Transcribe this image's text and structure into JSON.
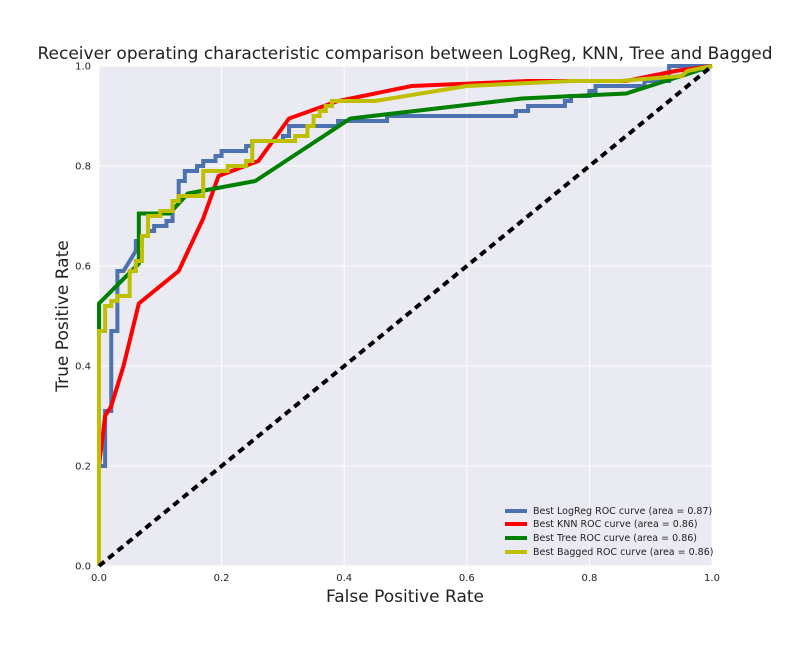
{
  "chart_data": {
    "type": "line",
    "title": "Receiver operating characteristic comparison between LogReg, KNN, Tree and Bagged",
    "xlabel": "False Positive Rate",
    "ylabel": "True Positive Rate",
    "xlim": [
      0.0,
      1.0
    ],
    "ylim": [
      0.0,
      1.0
    ],
    "xticks": [
      "0.0",
      "0.2",
      "0.4",
      "0.6",
      "0.8",
      "1.0"
    ],
    "yticks": [
      "0.0",
      "0.2",
      "0.4",
      "0.6",
      "0.8",
      "1.0"
    ],
    "grid": true,
    "legend_position": "bottom-right",
    "series": [
      {
        "name": "Best LogReg ROC curve (area = 0.87)",
        "color": "#4c72b0",
        "step": true,
        "points": [
          [
            0,
            0
          ],
          [
            0,
            0.2
          ],
          [
            0.01,
            0.2
          ],
          [
            0.01,
            0.31
          ],
          [
            0.02,
            0.31
          ],
          [
            0.02,
            0.47
          ],
          [
            0.03,
            0.47
          ],
          [
            0.03,
            0.59
          ],
          [
            0.04,
            0.59
          ],
          [
            0.06,
            0.63
          ],
          [
            0.06,
            0.65
          ],
          [
            0.07,
            0.65
          ],
          [
            0.07,
            0.66
          ],
          [
            0.08,
            0.66
          ],
          [
            0.08,
            0.67
          ],
          [
            0.09,
            0.67
          ],
          [
            0.09,
            0.68
          ],
          [
            0.1,
            0.68
          ],
          [
            0.11,
            0.68
          ],
          [
            0.11,
            0.69
          ],
          [
            0.12,
            0.69
          ],
          [
            0.12,
            0.73
          ],
          [
            0.13,
            0.73
          ],
          [
            0.13,
            0.77
          ],
          [
            0.14,
            0.77
          ],
          [
            0.14,
            0.79
          ],
          [
            0.16,
            0.79
          ],
          [
            0.16,
            0.8
          ],
          [
            0.17,
            0.8
          ],
          [
            0.17,
            0.81
          ],
          [
            0.19,
            0.81
          ],
          [
            0.19,
            0.82
          ],
          [
            0.2,
            0.82
          ],
          [
            0.2,
            0.83
          ],
          [
            0.24,
            0.83
          ],
          [
            0.24,
            0.84
          ],
          [
            0.25,
            0.84
          ],
          [
            0.25,
            0.85
          ],
          [
            0.3,
            0.85
          ],
          [
            0.3,
            0.86
          ],
          [
            0.31,
            0.86
          ],
          [
            0.31,
            0.88
          ],
          [
            0.39,
            0.88
          ],
          [
            0.39,
            0.89
          ],
          [
            0.47,
            0.89
          ],
          [
            0.47,
            0.9
          ],
          [
            0.68,
            0.9
          ],
          [
            0.68,
            0.91
          ],
          [
            0.7,
            0.91
          ],
          [
            0.7,
            0.92
          ],
          [
            0.76,
            0.92
          ],
          [
            0.76,
            0.93
          ],
          [
            0.77,
            0.93
          ],
          [
            0.77,
            0.94
          ],
          [
            0.8,
            0.94
          ],
          [
            0.8,
            0.95
          ],
          [
            0.81,
            0.95
          ],
          [
            0.81,
            0.96
          ],
          [
            0.89,
            0.96
          ],
          [
            0.89,
            0.97
          ],
          [
            0.93,
            0.97
          ],
          [
            0.93,
            0.98
          ],
          [
            0.93,
            1.0
          ],
          [
            1.0,
            1.0
          ]
        ]
      },
      {
        "name": "Best KNN ROC curve (area = 0.86)",
        "color": "#ff0000",
        "step": false,
        "points": [
          [
            0,
            0
          ],
          [
            0,
            0.2
          ],
          [
            0.01,
            0.3
          ],
          [
            0.02,
            0.32
          ],
          [
            0.04,
            0.4
          ],
          [
            0.065,
            0.525
          ],
          [
            0.13,
            0.59
          ],
          [
            0.17,
            0.695
          ],
          [
            0.195,
            0.78
          ],
          [
            0.26,
            0.81
          ],
          [
            0.31,
            0.895
          ],
          [
            0.39,
            0.93
          ],
          [
            0.51,
            0.96
          ],
          [
            0.7,
            0.97
          ],
          [
            0.86,
            0.97
          ],
          [
            0.94,
            0.99
          ],
          [
            1.0,
            1.0
          ]
        ]
      },
      {
        "name": "Best Tree ROC curve (area = 0.86)",
        "color": "#008000",
        "step": false,
        "points": [
          [
            0,
            0
          ],
          [
            0,
            0.525
          ],
          [
            0.065,
            0.605
          ],
          [
            0.065,
            0.705
          ],
          [
            0.115,
            0.705
          ],
          [
            0.145,
            0.745
          ],
          [
            0.255,
            0.77
          ],
          [
            0.41,
            0.895
          ],
          [
            0.69,
            0.935
          ],
          [
            0.86,
            0.945
          ],
          [
            0.95,
            0.98
          ],
          [
            1.0,
            1.0
          ]
        ]
      },
      {
        "name": "Best Bagged ROC curve (area = 0.86)",
        "color": "#bfbf00",
        "step": true,
        "points": [
          [
            0,
            0
          ],
          [
            0,
            0.47
          ],
          [
            0.01,
            0.47
          ],
          [
            0.01,
            0.52
          ],
          [
            0.02,
            0.52
          ],
          [
            0.02,
            0.53
          ],
          [
            0.03,
            0.53
          ],
          [
            0.03,
            0.54
          ],
          [
            0.05,
            0.54
          ],
          [
            0.05,
            0.59
          ],
          [
            0.06,
            0.59
          ],
          [
            0.06,
            0.61
          ],
          [
            0.07,
            0.61
          ],
          [
            0.07,
            0.63
          ],
          [
            0.07,
            0.66
          ],
          [
            0.08,
            0.66
          ],
          [
            0.08,
            0.7
          ],
          [
            0.1,
            0.7
          ],
          [
            0.1,
            0.71
          ],
          [
            0.12,
            0.71
          ],
          [
            0.12,
            0.73
          ],
          [
            0.13,
            0.73
          ],
          [
            0.13,
            0.74
          ],
          [
            0.17,
            0.74
          ],
          [
            0.17,
            0.79
          ],
          [
            0.21,
            0.79
          ],
          [
            0.21,
            0.8
          ],
          [
            0.24,
            0.8
          ],
          [
            0.24,
            0.81
          ],
          [
            0.25,
            0.81
          ],
          [
            0.25,
            0.85
          ],
          [
            0.32,
            0.85
          ],
          [
            0.32,
            0.86
          ],
          [
            0.34,
            0.86
          ],
          [
            0.34,
            0.88
          ],
          [
            0.35,
            0.88
          ],
          [
            0.35,
            0.9
          ],
          [
            0.36,
            0.9
          ],
          [
            0.36,
            0.91
          ],
          [
            0.37,
            0.91
          ],
          [
            0.37,
            0.92
          ],
          [
            0.38,
            0.92
          ],
          [
            0.38,
            0.93
          ],
          [
            0.45,
            0.93
          ],
          [
            0.6,
            0.96
          ],
          [
            0.77,
            0.97
          ],
          [
            0.85,
            0.97
          ],
          [
            0.95,
            0.98
          ],
          [
            0.96,
            0.99
          ],
          [
            1.0,
            1.0
          ]
        ]
      }
    ],
    "reference_line": {
      "color": "#000000",
      "points": [
        [
          0,
          0
        ],
        [
          1,
          1
        ]
      ]
    }
  }
}
